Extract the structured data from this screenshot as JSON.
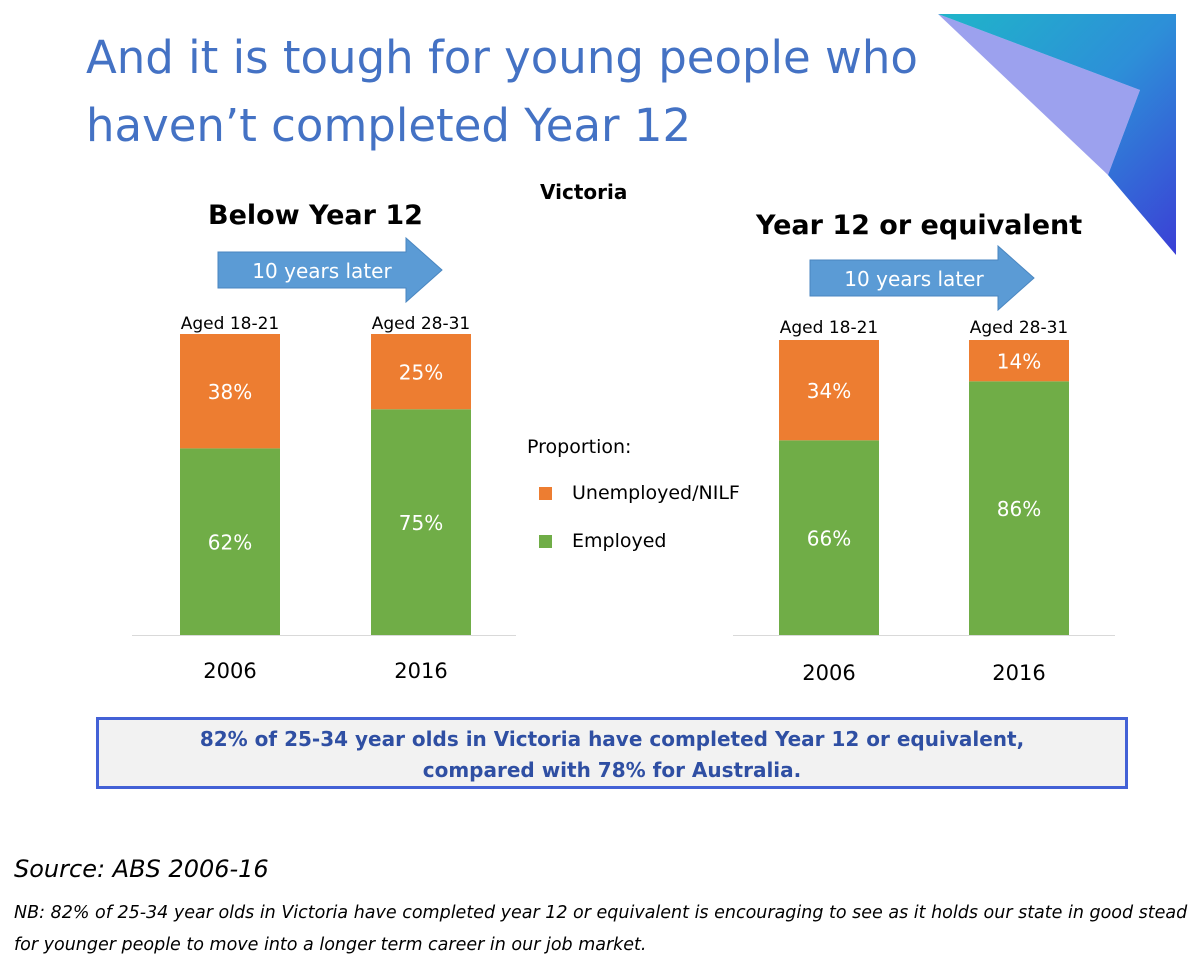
{
  "slide": {
    "title_line1": "And it is tough for young people who",
    "title_line2": "haven’t completed Year 12",
    "region": "Victoria",
    "accent_color": "#4472C4"
  },
  "panels": [
    {
      "heading": "Below Year 12",
      "arrow_label": "10 years later"
    },
    {
      "heading": "Year 12 or equivalent",
      "arrow_label": "10 years later"
    }
  ],
  "legend": {
    "title": "Proportion:",
    "items": [
      {
        "label": "Unemployed/NILF",
        "color": "#ED7D31"
      },
      {
        "label": "Employed",
        "color": "#70AD47"
      }
    ]
  },
  "chart_data": [
    {
      "type": "bar",
      "stacked": true,
      "title": "Below Year 12",
      "categories": [
        "2006",
        "2016"
      ],
      "bar_labels": [
        "Aged 18-21",
        "Aged 28-31"
      ],
      "series": [
        {
          "name": "Employed",
          "values": [
            62,
            75
          ],
          "labels": [
            "62%",
            "75%"
          ],
          "color": "#70AD47"
        },
        {
          "name": "Unemployed/NILF",
          "values": [
            38,
            25
          ],
          "labels": [
            "38%",
            "25%"
          ],
          "color": "#ED7D31"
        }
      ],
      "ylim": [
        0,
        100
      ],
      "legend": "center"
    },
    {
      "type": "bar",
      "stacked": true,
      "title": "Year 12 or equivalent",
      "categories": [
        "2006",
        "2016"
      ],
      "bar_labels": [
        "Aged 18-21",
        "Aged 28-31"
      ],
      "series": [
        {
          "name": "Employed",
          "values": [
            66,
            86
          ],
          "labels": [
            "66%",
            "86%"
          ],
          "color": "#70AD47"
        },
        {
          "name": "Unemployed/NILF",
          "values": [
            34,
            14
          ],
          "labels": [
            "34%",
            "14%"
          ],
          "color": "#ED7D31"
        }
      ],
      "ylim": [
        0,
        100
      ],
      "legend": "center"
    }
  ],
  "callout": {
    "line1": "82% of 25-34 year olds in Victoria have completed Year 12 or equivalent,",
    "line2": "compared with 78% for Australia."
  },
  "source": "Source: ABS 2006-16",
  "note": "NB: 82% of 25-34 year olds in Victoria have completed year 12 or equivalent is encouraging to see as it holds our state in good stead for younger people to move into a longer term career in our job market."
}
